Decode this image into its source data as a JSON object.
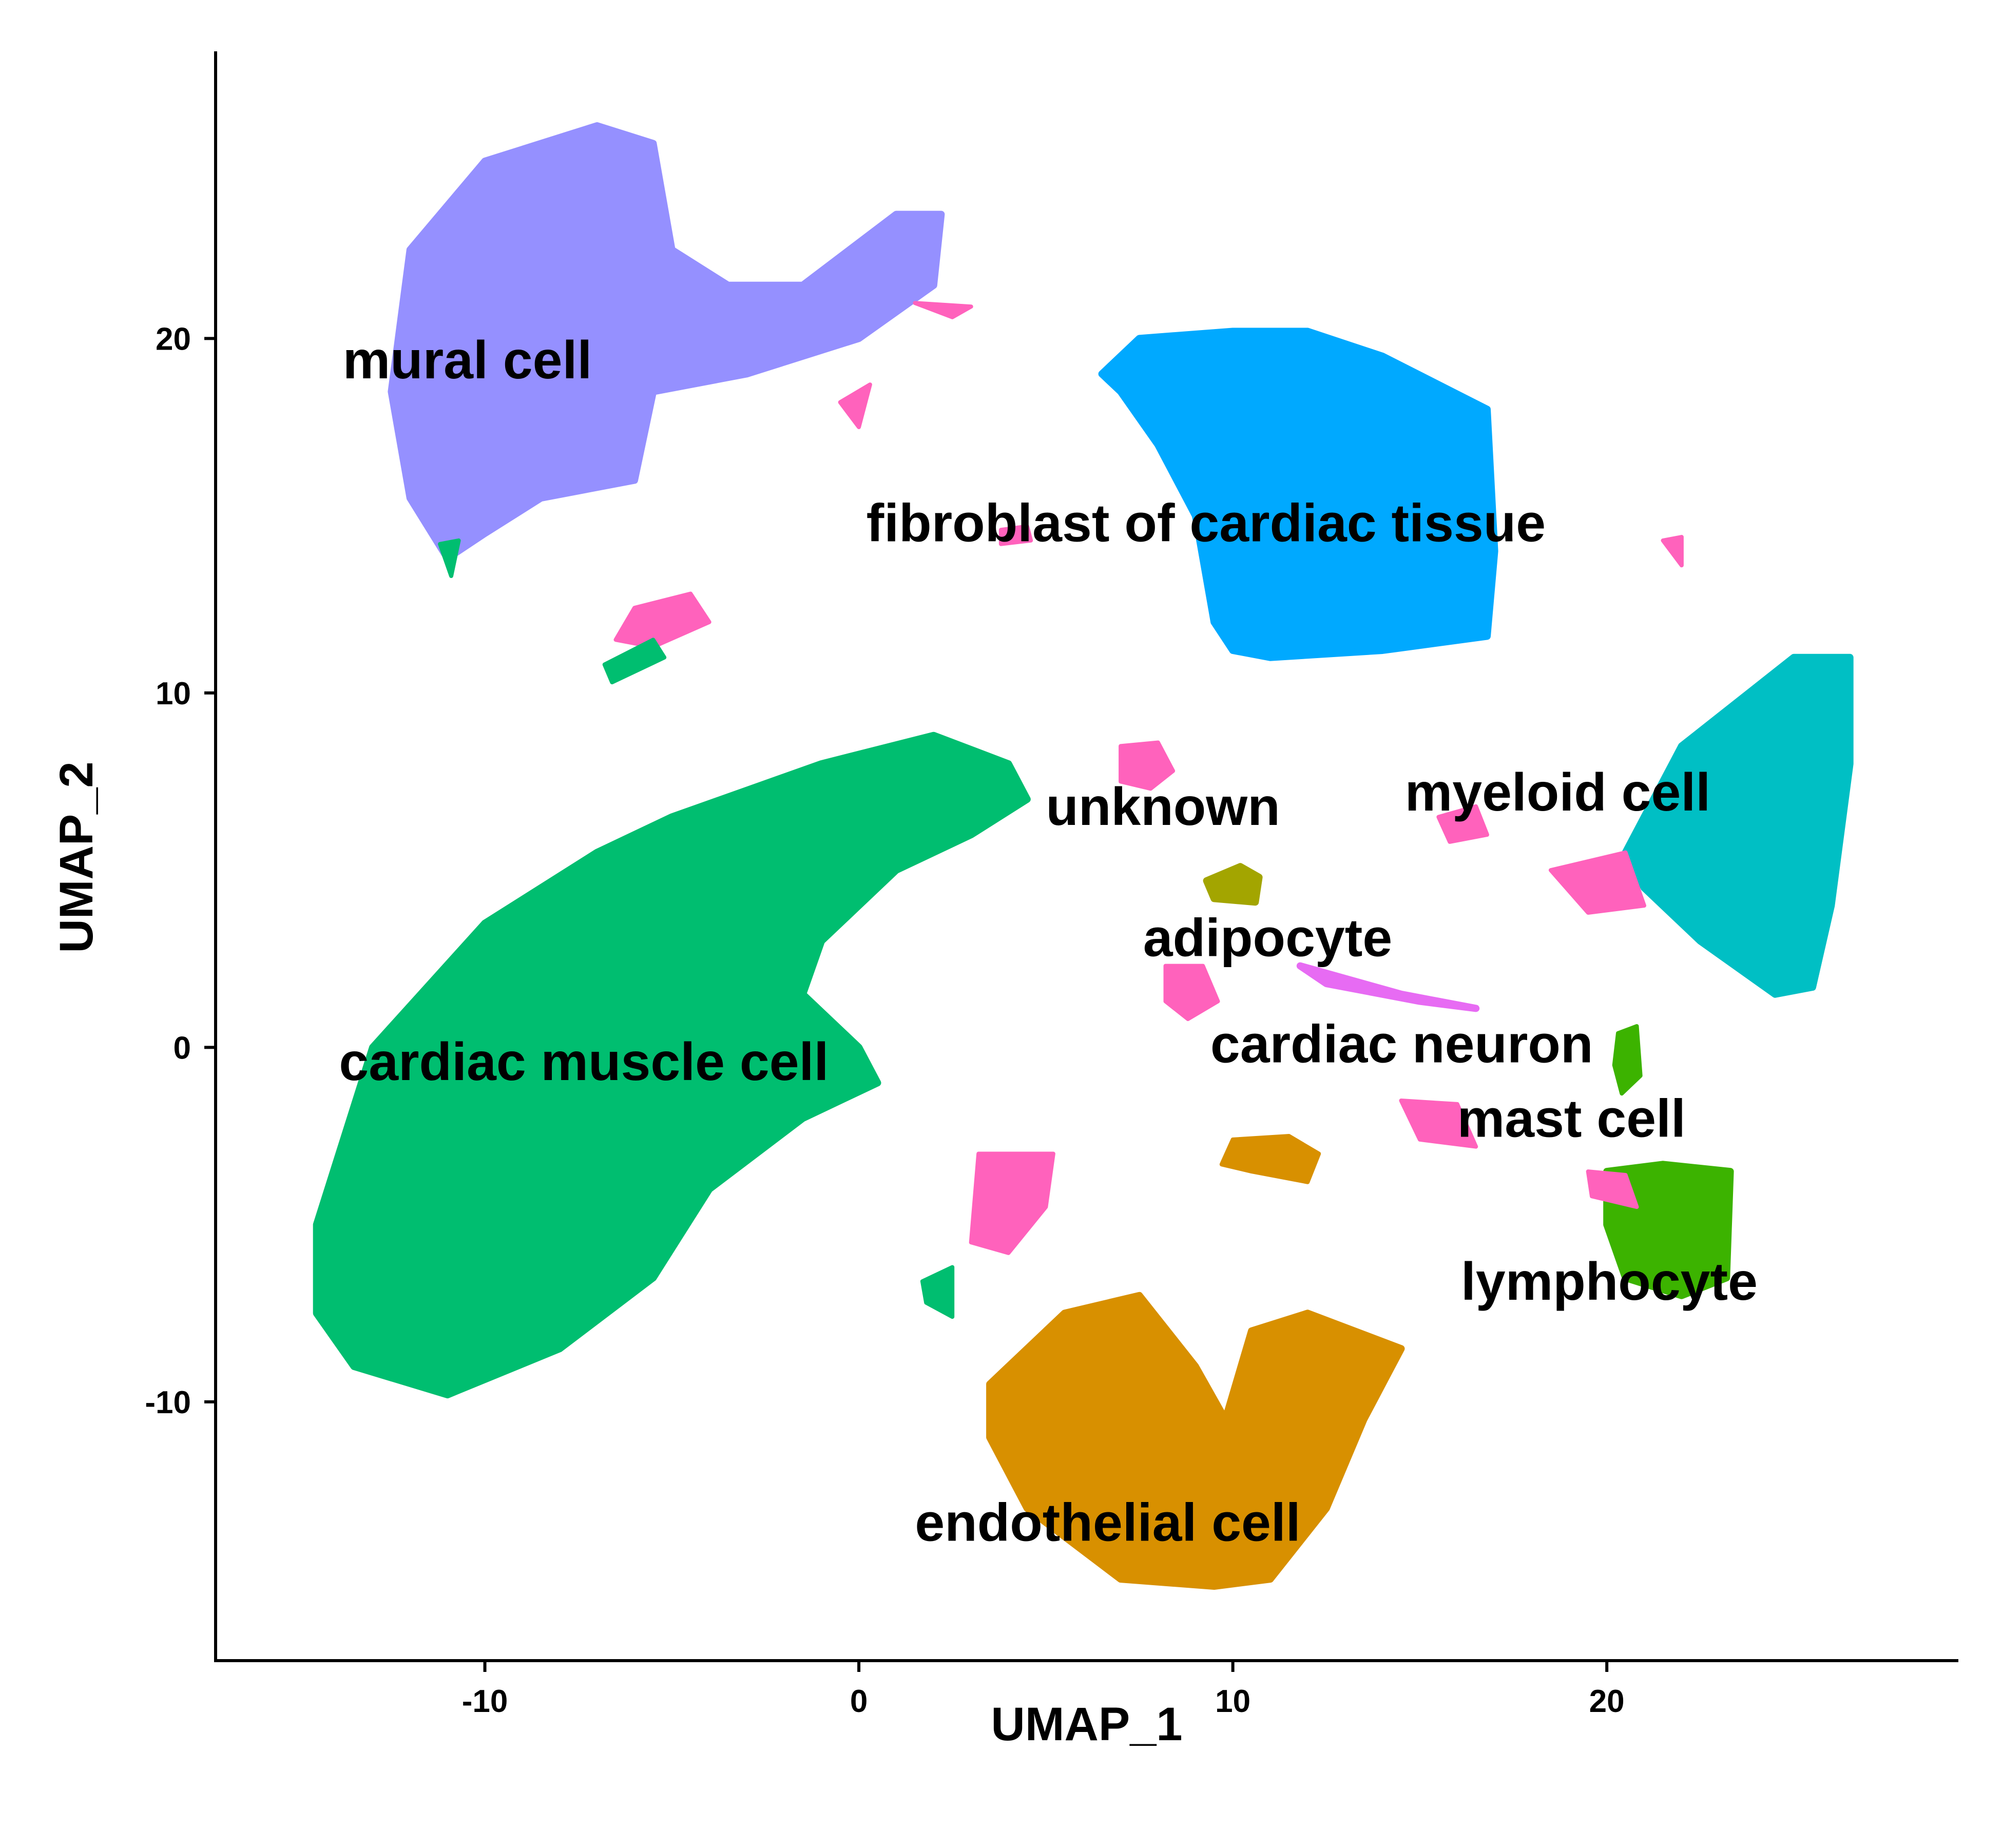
{
  "chart_data": {
    "type": "scatter",
    "title": "",
    "xlabel": "UMAP_1",
    "ylabel": "UMAP_2",
    "xlim": [
      -17.2,
      29.4
    ],
    "ylim": [
      -17.3,
      28.1
    ],
    "x_ticks": [
      -10,
      0,
      10,
      20
    ],
    "y_ticks": [
      -10,
      0,
      10,
      20
    ],
    "x_tick_labels": [
      "-10",
      "0",
      "10",
      "20"
    ],
    "y_tick_labels": [
      "-10",
      "0",
      "10",
      "20"
    ],
    "grid": false,
    "legend": "none",
    "series": [
      {
        "name": "mural cell",
        "color": "#9590FF",
        "label": {
          "text": "mural cell",
          "x": -13.8,
          "y": 19.4
        },
        "outline": [
          [
            -12.5,
            18.5
          ],
          [
            -12,
            22.5
          ],
          [
            -10,
            25
          ],
          [
            -7,
            26
          ],
          [
            -5.5,
            25.5
          ],
          [
            -5,
            22.5
          ],
          [
            -3.5,
            21.5
          ],
          [
            -1.5,
            21.5
          ],
          [
            1,
            23.5
          ],
          [
            2.2,
            23.5
          ],
          [
            2,
            21.5
          ],
          [
            0,
            20
          ],
          [
            -3,
            19
          ],
          [
            -5.5,
            18.5
          ],
          [
            -6,
            16
          ],
          [
            -8.5,
            15.5
          ],
          [
            -10,
            14.5
          ],
          [
            -11,
            13.8
          ],
          [
            -12,
            15.5
          ]
        ]
      },
      {
        "name": "fibroblast of cardiac tissue",
        "color": "#00A9FF",
        "label": {
          "text": "fibroblast of cardiac tissue",
          "x": 0.2,
          "y": 14.8
        },
        "outline": [
          [
            6.5,
            19
          ],
          [
            7.5,
            20
          ],
          [
            10,
            20.2
          ],
          [
            12,
            20.2
          ],
          [
            14,
            19.5
          ],
          [
            16.8,
            18
          ],
          [
            17,
            14
          ],
          [
            16.8,
            11.6
          ],
          [
            14,
            11.2
          ],
          [
            11,
            11
          ],
          [
            10,
            11.2
          ],
          [
            9.5,
            12
          ],
          [
            9,
            15
          ],
          [
            8,
            17
          ],
          [
            7,
            18.5
          ]
        ]
      },
      {
        "name": "myeloid cell",
        "color": "#00BFC4",
        "label": {
          "text": "myeloid cell",
          "x": 14.6,
          "y": 7.2
        },
        "outline": [
          [
            20.5,
            5.5
          ],
          [
            22,
            8.5
          ],
          [
            25,
            11
          ],
          [
            26.5,
            11
          ],
          [
            26.5,
            8
          ],
          [
            26,
            4
          ],
          [
            25.5,
            1.7
          ],
          [
            24.5,
            1.5
          ],
          [
            22.5,
            3
          ],
          [
            21,
            4.5
          ]
        ]
      },
      {
        "name": "cardiac muscle cell",
        "color": "#00BE70",
        "label": {
          "text": "cardiac muscle cell",
          "x": -13.9,
          "y": -0.4
        },
        "outline": [
          [
            -14.5,
            -5
          ],
          [
            -13,
            0
          ],
          [
            -10,
            3.5
          ],
          [
            -7,
            5.5
          ],
          [
            -5,
            6.5
          ],
          [
            -1,
            8
          ],
          [
            2,
            8.8
          ],
          [
            4,
            8
          ],
          [
            4.5,
            7
          ],
          [
            3,
            6
          ],
          [
            1,
            5
          ],
          [
            -1,
            3
          ],
          [
            -1.5,
            1.5
          ],
          [
            0,
            0
          ],
          [
            0.5,
            -1
          ],
          [
            -1.5,
            -2
          ],
          [
            -4,
            -4
          ],
          [
            -5.5,
            -6.5
          ],
          [
            -8,
            -8.5
          ],
          [
            -11,
            -9.8
          ],
          [
            -13.5,
            -9
          ],
          [
            -14.5,
            -7.5
          ]
        ]
      },
      {
        "name": "endothelial cell",
        "color": "#D89000",
        "label": {
          "text": "endothelial cell",
          "x": 1.5,
          "y": -13.4
        },
        "outline": [
          [
            3.5,
            -9.5
          ],
          [
            5.5,
            -7.5
          ],
          [
            7.5,
            -7
          ],
          [
            9,
            -9
          ],
          [
            9.8,
            -10.5
          ],
          [
            10.5,
            -8
          ],
          [
            12,
            -7.5
          ],
          [
            14.5,
            -8.5
          ],
          [
            13.5,
            -10.5
          ],
          [
            12.5,
            -13
          ],
          [
            11,
            -15
          ],
          [
            9.5,
            -15.2
          ],
          [
            7,
            -15
          ],
          [
            4.5,
            -13
          ],
          [
            3.5,
            -11
          ]
        ]
      },
      {
        "name": "lymphocyte",
        "color": "#3CB300",
        "label": {
          "text": "lymphocyte",
          "x": 16.1,
          "y": -6.6
        },
        "outline": [
          [
            20,
            -3.5
          ],
          [
            21.5,
            -3.3
          ],
          [
            23.3,
            -3.5
          ],
          [
            23.2,
            -6.5
          ],
          [
            22,
            -7
          ],
          [
            20.5,
            -6.5
          ],
          [
            20,
            -5
          ]
        ]
      },
      {
        "name": "adipocyte",
        "color": "#A3A500",
        "label": {
          "text": "adipocyte",
          "x": 7.6,
          "y": 3.1
        },
        "outline": [
          [
            9.3,
            4.7
          ],
          [
            10.2,
            5.1
          ],
          [
            10.7,
            4.8
          ],
          [
            10.6,
            4.1
          ],
          [
            9.5,
            4.2
          ]
        ]
      },
      {
        "name": "cardiac neuron",
        "color": "#E76BF3",
        "label": {
          "text": "cardiac neuron",
          "x": 9.4,
          "y": 0.1
        },
        "outline": [
          [
            11.8,
            2.3
          ],
          [
            14.5,
            1.5
          ],
          [
            16.5,
            1.1
          ],
          [
            15,
            1.3
          ],
          [
            12.5,
            1.8
          ]
        ]
      },
      {
        "name": "mast cell",
        "color": "#619CFF",
        "label": {
          "text": "mast cell",
          "x": 16.0,
          "y": -2.0
        },
        "outline": []
      },
      {
        "name": "unknown",
        "color": "#FF62BC",
        "label": {
          "text": "unknown",
          "x": 5.0,
          "y": 6.8
        },
        "outline": []
      }
    ],
    "pink_patches": [
      [
        [
          -6,
          12.4
        ],
        [
          -4.5,
          12.8
        ],
        [
          -4,
          12
        ],
        [
          -5.5,
          11.3
        ],
        [
          -6.5,
          11.5
        ]
      ],
      [
        [
          7,
          8.5
        ],
        [
          8,
          8.6
        ],
        [
          8.4,
          7.8
        ],
        [
          7.8,
          7.3
        ],
        [
          7,
          7.5
        ]
      ],
      [
        [
          8.2,
          2.3
        ],
        [
          9.2,
          2.3
        ],
        [
          9.6,
          1.3
        ],
        [
          8.8,
          0.8
        ],
        [
          8.2,
          1.3
        ]
      ],
      [
        [
          3.2,
          -3
        ],
        [
          5.2,
          -3
        ],
        [
          5,
          -4.5
        ],
        [
          4,
          -5.8
        ],
        [
          3,
          -5.5
        ]
      ],
      [
        [
          18.5,
          5
        ],
        [
          20.5,
          5.5
        ],
        [
          21,
          4
        ],
        [
          19.5,
          3.8
        ]
      ],
      [
        [
          15.5,
          6.5
        ],
        [
          16.5,
          6.8
        ],
        [
          16.8,
          6
        ],
        [
          15.8,
          5.8
        ]
      ],
      [
        [
          14.5,
          -1.5
        ],
        [
          16,
          -1.6
        ],
        [
          16.5,
          -2.8
        ],
        [
          15,
          -2.6
        ]
      ],
      [
        [
          19.5,
          -3.5
        ],
        [
          20.5,
          -3.6
        ],
        [
          20.8,
          -4.5
        ],
        [
          19.6,
          -4.2
        ]
      ],
      [
        [
          3.8,
          14.6
        ],
        [
          4.5,
          14.7
        ],
        [
          4.6,
          14.3
        ],
        [
          3.8,
          14.2
        ]
      ],
      [
        [
          1.5,
          21
        ],
        [
          3,
          20.9
        ],
        [
          2.5,
          20.6
        ]
      ],
      [
        [
          -0.5,
          18.2
        ],
        [
          0.3,
          18.7
        ],
        [
          0,
          17.5
        ]
      ],
      [
        [
          21.5,
          14.3
        ],
        [
          22,
          14.4
        ],
        [
          22,
          13.6
        ]
      ]
    ],
    "green_patches": [
      [
        [
          -6.8,
          10.8
        ],
        [
          -5.5,
          11.5
        ],
        [
          -5.2,
          11
        ],
        [
          -6.6,
          10.3
        ]
      ],
      [
        [
          -11.2,
          14.2
        ],
        [
          -10.7,
          14.3
        ],
        [
          -10.9,
          13.3
        ]
      ],
      [
        [
          1.7,
          -6.6
        ],
        [
          2.5,
          -6.2
        ],
        [
          2.5,
          -7.6
        ],
        [
          1.8,
          -7.2
        ]
      ]
    ],
    "olive_patches": [
      [
        [
          10,
          -2.6
        ],
        [
          11.5,
          -2.5
        ],
        [
          12.3,
          -3
        ],
        [
          12,
          -3.8
        ],
        [
          10.5,
          -3.5
        ],
        [
          9.7,
          -3.3
        ]
      ]
    ],
    "mast_patches": [
      [
        [
          20.3,
          0.4
        ],
        [
          20.8,
          0.6
        ],
        [
          20.9,
          -0.8
        ],
        [
          20.4,
          -1.3
        ],
        [
          20.2,
          -0.5
        ]
      ]
    ]
  }
}
